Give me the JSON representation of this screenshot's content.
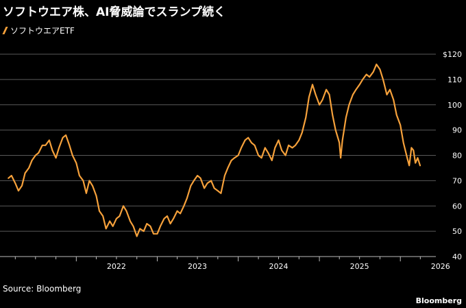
{
  "header": {
    "title": "ソフトウエア株、AI脅威論でスランプ続く"
  },
  "footer": {
    "source": "Source: Bloomberg",
    "brand": "Bloomberg"
  },
  "colors": {
    "background": "#000000",
    "line": "#f6a13b",
    "grid": "#5a5a5a",
    "text": "#ffffff"
  },
  "chart_data": {
    "type": "line",
    "title": "ソフトウエア株、AI脅威論でスランプ続く",
    "xlabel": "",
    "ylabel": "",
    "x_ticks": [
      "2022",
      "2023",
      "2024",
      "2025",
      "2026"
    ],
    "y_ticks": [
      "$120",
      "110",
      "100",
      "90",
      "80",
      "70",
      "60",
      "50",
      "40"
    ],
    "ylim": [
      40,
      120
    ],
    "grid": true,
    "legend_position": "top-left",
    "series": [
      {
        "name": "ソフトウエアETF",
        "points": [
          [
            "2021-03-01",
            71
          ],
          [
            "2021-03-15",
            72
          ],
          [
            "2021-04-01",
            69
          ],
          [
            "2021-04-15",
            66
          ],
          [
            "2021-05-01",
            68
          ],
          [
            "2021-05-15",
            73
          ],
          [
            "2021-06-01",
            75
          ],
          [
            "2021-06-15",
            78
          ],
          [
            "2021-07-01",
            80
          ],
          [
            "2021-07-15",
            81
          ],
          [
            "2021-08-01",
            84
          ],
          [
            "2021-08-15",
            84
          ],
          [
            "2021-09-01",
            86
          ],
          [
            "2021-09-15",
            82
          ],
          [
            "2021-10-01",
            79
          ],
          [
            "2021-10-15",
            83
          ],
          [
            "2021-11-01",
            87
          ],
          [
            "2021-11-15",
            88
          ],
          [
            "2021-12-01",
            84
          ],
          [
            "2021-12-15",
            80
          ],
          [
            "2022-01-01",
            77
          ],
          [
            "2022-01-15",
            72
          ],
          [
            "2022-02-01",
            70
          ],
          [
            "2022-02-15",
            65
          ],
          [
            "2022-03-01",
            70
          ],
          [
            "2022-03-15",
            68
          ],
          [
            "2022-04-01",
            64
          ],
          [
            "2022-04-15",
            58
          ],
          [
            "2022-05-01",
            56
          ],
          [
            "2022-05-15",
            51
          ],
          [
            "2022-06-01",
            54
          ],
          [
            "2022-06-15",
            52
          ],
          [
            "2022-07-01",
            55
          ],
          [
            "2022-07-15",
            56
          ],
          [
            "2022-08-01",
            60
          ],
          [
            "2022-08-15",
            58
          ],
          [
            "2022-09-01",
            54
          ],
          [
            "2022-09-15",
            52
          ],
          [
            "2022-10-01",
            48
          ],
          [
            "2022-10-15",
            51
          ],
          [
            "2022-11-01",
            50
          ],
          [
            "2022-11-15",
            53
          ],
          [
            "2022-12-01",
            52
          ],
          [
            "2022-12-15",
            49
          ],
          [
            "2023-01-01",
            49
          ],
          [
            "2023-01-15",
            52
          ],
          [
            "2023-02-01",
            55
          ],
          [
            "2023-02-15",
            56
          ],
          [
            "2023-03-01",
            53
          ],
          [
            "2023-03-15",
            55
          ],
          [
            "2023-04-01",
            58
          ],
          [
            "2023-04-15",
            57
          ],
          [
            "2023-05-01",
            60
          ],
          [
            "2023-05-15",
            63
          ],
          [
            "2023-06-01",
            68
          ],
          [
            "2023-06-15",
            70
          ],
          [
            "2023-07-01",
            72
          ],
          [
            "2023-07-15",
            71
          ],
          [
            "2023-08-01",
            67
          ],
          [
            "2023-08-15",
            69
          ],
          [
            "2023-09-01",
            70
          ],
          [
            "2023-09-15",
            67
          ],
          [
            "2023-10-01",
            66
          ],
          [
            "2023-10-15",
            65
          ],
          [
            "2023-11-01",
            72
          ],
          [
            "2023-11-15",
            75
          ],
          [
            "2023-12-01",
            78
          ],
          [
            "2023-12-15",
            79
          ],
          [
            "2024-01-01",
            80
          ],
          [
            "2024-01-15",
            83
          ],
          [
            "2024-02-01",
            86
          ],
          [
            "2024-02-15",
            87
          ],
          [
            "2024-03-01",
            85
          ],
          [
            "2024-03-15",
            84
          ],
          [
            "2024-04-01",
            80
          ],
          [
            "2024-04-15",
            79
          ],
          [
            "2024-05-01",
            83
          ],
          [
            "2024-05-15",
            81
          ],
          [
            "2024-06-01",
            78
          ],
          [
            "2024-06-15",
            83
          ],
          [
            "2024-07-01",
            86
          ],
          [
            "2024-07-15",
            82
          ],
          [
            "2024-08-01",
            80
          ],
          [
            "2024-08-15",
            84
          ],
          [
            "2024-09-01",
            83
          ],
          [
            "2024-09-15",
            84
          ],
          [
            "2024-10-01",
            86
          ],
          [
            "2024-10-15",
            89
          ],
          [
            "2024-11-01",
            95
          ],
          [
            "2024-11-15",
            103
          ],
          [
            "2024-12-01",
            108
          ],
          [
            "2024-12-15",
            104
          ],
          [
            "2025-01-01",
            100
          ],
          [
            "2025-01-15",
            102
          ],
          [
            "2025-02-01",
            106
          ],
          [
            "2025-02-15",
            104
          ],
          [
            "2025-03-01",
            96
          ],
          [
            "2025-03-15",
            90
          ],
          [
            "2025-04-01",
            85
          ],
          [
            "2025-04-07",
            79
          ],
          [
            "2025-04-15",
            86
          ],
          [
            "2025-05-01",
            95
          ],
          [
            "2025-05-15",
            100
          ],
          [
            "2025-06-01",
            104
          ],
          [
            "2025-06-15",
            106
          ],
          [
            "2025-07-01",
            108
          ],
          [
            "2025-07-15",
            110
          ],
          [
            "2025-08-01",
            112
          ],
          [
            "2025-08-15",
            111
          ],
          [
            "2025-09-01",
            113
          ],
          [
            "2025-09-15",
            116
          ],
          [
            "2025-10-01",
            114
          ],
          [
            "2025-10-15",
            110
          ],
          [
            "2025-11-01",
            104
          ],
          [
            "2025-11-15",
            106
          ],
          [
            "2025-12-01",
            102
          ],
          [
            "2025-12-15",
            96
          ],
          [
            "2026-01-01",
            92
          ],
          [
            "2026-01-15",
            85
          ],
          [
            "2026-02-01",
            79
          ],
          [
            "2026-02-10",
            76
          ],
          [
            "2026-02-20",
            83
          ],
          [
            "2026-03-01",
            82
          ],
          [
            "2026-03-10",
            77
          ],
          [
            "2026-03-20",
            79
          ],
          [
            "2026-03-31",
            76
          ]
        ]
      }
    ]
  }
}
